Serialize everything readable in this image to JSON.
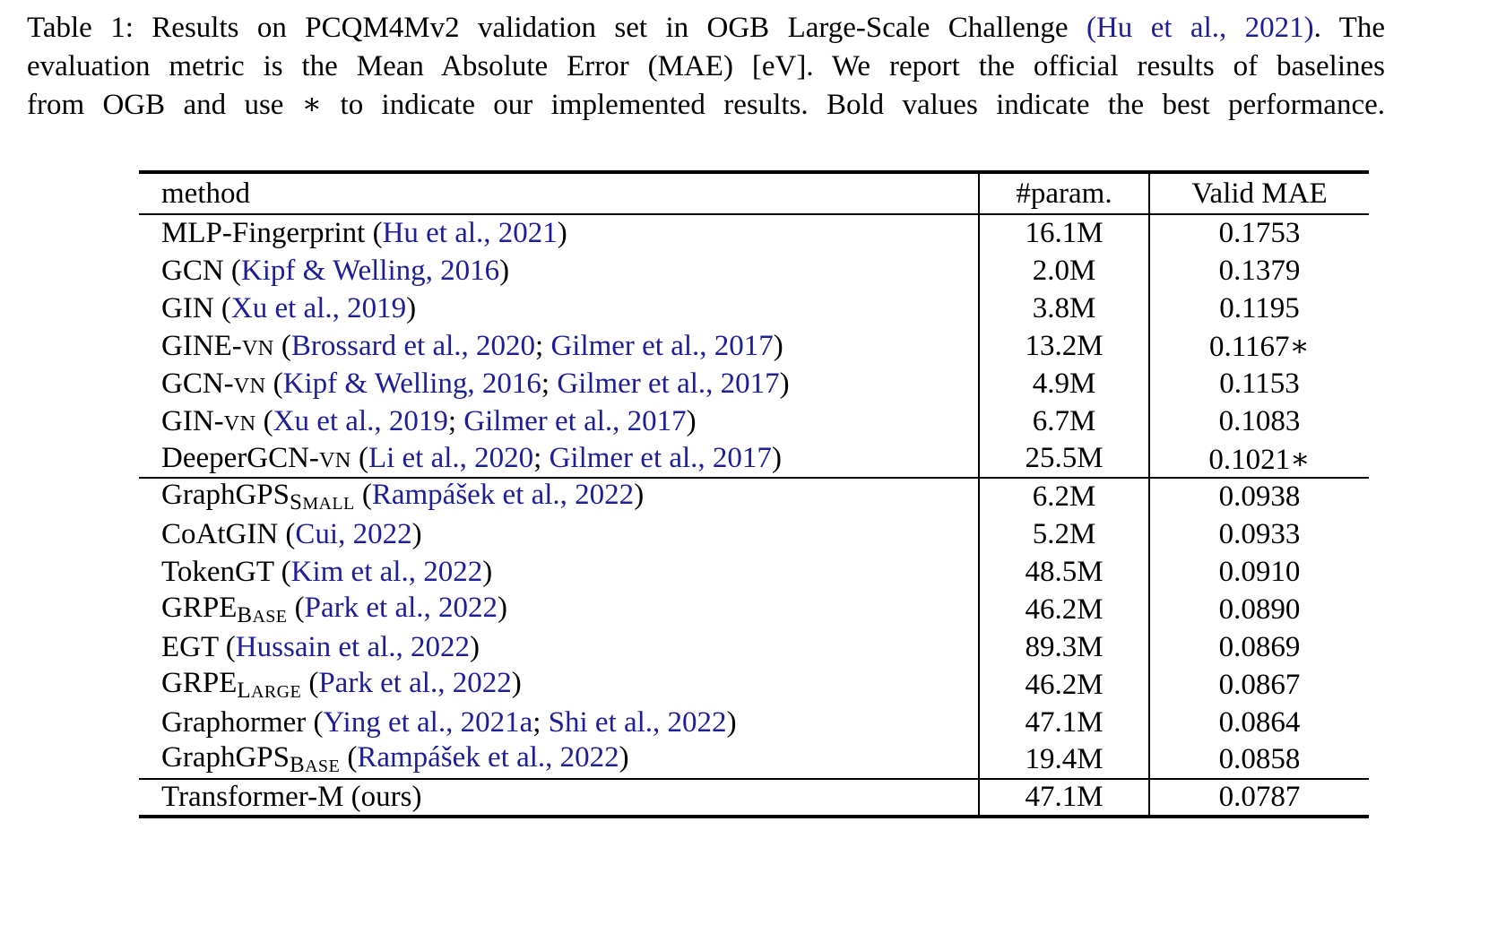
{
  "colors": {
    "text": "#000000",
    "citation": "#1e1e96",
    "rule": "#000000",
    "background": "#ffffff"
  },
  "caption": {
    "label": "Table 1",
    "lines": [
      {
        "segments": [
          {
            "t": "text",
            "v": "Table 1: Results on PCQM4Mv2 validation set in OGB Large-Scale Challenge "
          },
          {
            "t": "cite",
            "v": "(Hu et al., 2021)"
          },
          {
            "t": "text",
            "v": ". The"
          }
        ]
      },
      {
        "segments": [
          {
            "t": "text",
            "v": "evaluation metric is the Mean Absolute Error (MAE) [eV]. We report the official results of baselines"
          }
        ]
      },
      {
        "segments": [
          {
            "t": "text",
            "v": "from OGB and use ∗ to indicate our implemented results. Bold values indicate the best performance."
          }
        ]
      }
    ]
  },
  "table": {
    "headers": [
      "method",
      "#param.",
      "Valid MAE"
    ],
    "groups": [
      {
        "rows": [
          {
            "method": [
              {
                "t": "text",
                "v": "MLP-Fingerprint ("
              },
              {
                "t": "cite",
                "v": "Hu et al., 2021"
              },
              {
                "t": "text",
                "v": ")"
              }
            ],
            "params": "16.1M",
            "mae": "0.1753",
            "bold": false
          },
          {
            "method": [
              {
                "t": "text",
                "v": "GCN ("
              },
              {
                "t": "cite",
                "v": "Kipf & Welling, 2016"
              },
              {
                "t": "text",
                "v": ")"
              }
            ],
            "params": "2.0M",
            "mae": "0.1379",
            "bold": false
          },
          {
            "method": [
              {
                "t": "text",
                "v": "GIN ("
              },
              {
                "t": "cite",
                "v": "Xu et al., 2019"
              },
              {
                "t": "text",
                "v": ")"
              }
            ],
            "params": "3.8M",
            "mae": "0.1195",
            "bold": false
          },
          {
            "method": [
              {
                "t": "text",
                "v": "GINE-"
              },
              {
                "t": "sc",
                "v": "VN"
              },
              {
                "t": "text",
                "v": " ("
              },
              {
                "t": "cite",
                "v": "Brossard et al., 2020"
              },
              {
                "t": "text",
                "v": "; "
              },
              {
                "t": "cite",
                "v": "Gilmer et al., 2017"
              },
              {
                "t": "text",
                "v": ")"
              }
            ],
            "params": "13.2M",
            "mae": "0.1167∗",
            "bold": false
          },
          {
            "method": [
              {
                "t": "text",
                "v": "GCN-"
              },
              {
                "t": "sc",
                "v": "VN"
              },
              {
                "t": "text",
                "v": " ("
              },
              {
                "t": "cite",
                "v": "Kipf & Welling, 2016"
              },
              {
                "t": "text",
                "v": "; "
              },
              {
                "t": "cite",
                "v": "Gilmer et al., 2017"
              },
              {
                "t": "text",
                "v": ")"
              }
            ],
            "params": "4.9M",
            "mae": "0.1153",
            "bold": false
          },
          {
            "method": [
              {
                "t": "text",
                "v": "GIN-"
              },
              {
                "t": "sc",
                "v": "VN"
              },
              {
                "t": "text",
                "v": " ("
              },
              {
                "t": "cite",
                "v": "Xu et al., 2019"
              },
              {
                "t": "text",
                "v": "; "
              },
              {
                "t": "cite",
                "v": "Gilmer et al., 2017"
              },
              {
                "t": "text",
                "v": ")"
              }
            ],
            "params": "6.7M",
            "mae": "0.1083",
            "bold": false
          },
          {
            "method": [
              {
                "t": "text",
                "v": "DeeperGCN-"
              },
              {
                "t": "sc",
                "v": "VN"
              },
              {
                "t": "text",
                "v": " ("
              },
              {
                "t": "cite",
                "v": "Li et al., 2020"
              },
              {
                "t": "text",
                "v": "; "
              },
              {
                "t": "cite",
                "v": "Gilmer et al., 2017"
              },
              {
                "t": "text",
                "v": ")"
              }
            ],
            "params": "25.5M",
            "mae": "0.1021∗",
            "bold": false
          }
        ]
      },
      {
        "rows": [
          {
            "method": [
              {
                "t": "text",
                "v": "GraphGPS"
              },
              {
                "t": "sub",
                "v": "SMALL"
              },
              {
                "t": "text",
                "v": " ("
              },
              {
                "t": "cite",
                "v": "Rampášek et al., 2022"
              },
              {
                "t": "text",
                "v": ")"
              }
            ],
            "params": "6.2M",
            "mae": "0.0938",
            "bold": false
          },
          {
            "method": [
              {
                "t": "text",
                "v": "CoAtGIN ("
              },
              {
                "t": "cite",
                "v": "Cui, 2022"
              },
              {
                "t": "text",
                "v": ")"
              }
            ],
            "params": "5.2M",
            "mae": "0.0933",
            "bold": false
          },
          {
            "method": [
              {
                "t": "text",
                "v": "TokenGT ("
              },
              {
                "t": "cite",
                "v": "Kim et al., 2022"
              },
              {
                "t": "text",
                "v": ")"
              }
            ],
            "params": "48.5M",
            "mae": "0.0910",
            "bold": false
          },
          {
            "method": [
              {
                "t": "text",
                "v": "GRPE"
              },
              {
                "t": "sub",
                "v": "BASE"
              },
              {
                "t": "text",
                "v": " ("
              },
              {
                "t": "cite",
                "v": "Park et al., 2022"
              },
              {
                "t": "text",
                "v": ")"
              }
            ],
            "params": "46.2M",
            "mae": "0.0890",
            "bold": false
          },
          {
            "method": [
              {
                "t": "text",
                "v": "EGT ("
              },
              {
                "t": "cite",
                "v": "Hussain et al., 2022"
              },
              {
                "t": "text",
                "v": ")"
              }
            ],
            "params": "89.3M",
            "mae": "0.0869",
            "bold": false
          },
          {
            "method": [
              {
                "t": "text",
                "v": "GRPE"
              },
              {
                "t": "sub",
                "v": "LARGE"
              },
              {
                "t": "text",
                "v": " ("
              },
              {
                "t": "cite",
                "v": "Park et al., 2022"
              },
              {
                "t": "text",
                "v": ")"
              }
            ],
            "params": "46.2M",
            "mae": "0.0867",
            "bold": false
          },
          {
            "method": [
              {
                "t": "text",
                "v": "Graphormer ("
              },
              {
                "t": "cite",
                "v": "Ying et al., 2021a"
              },
              {
                "t": "text",
                "v": "; "
              },
              {
                "t": "cite",
                "v": "Shi et al., 2022"
              },
              {
                "t": "text",
                "v": ")"
              }
            ],
            "params": "47.1M",
            "mae": "0.0864",
            "bold": false
          },
          {
            "method": [
              {
                "t": "text",
                "v": "GraphGPS"
              },
              {
                "t": "sub",
                "v": "BASE"
              },
              {
                "t": "text",
                "v": " ("
              },
              {
                "t": "cite",
                "v": "Rampášek et al., 2022"
              },
              {
                "t": "text",
                "v": ")"
              }
            ],
            "params": "19.4M",
            "mae": "0.0858",
            "bold": false
          }
        ]
      },
      {
        "rows": [
          {
            "method": [
              {
                "t": "text",
                "v": "Transformer-M (ours)"
              }
            ],
            "params": "47.1M",
            "mae": "0.0787",
            "bold": true
          }
        ]
      }
    ]
  }
}
